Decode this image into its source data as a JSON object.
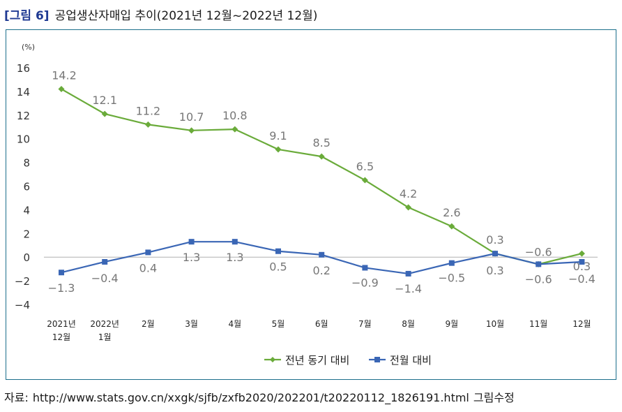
{
  "title": {
    "fig_label": "[그림 6]",
    "text": "공업생산자매입 추이(2021년 12월~2022년 12월)"
  },
  "source": {
    "label": "자료:",
    "url": "http://www.stats.gov.cn/xxgk/sjfb/zxfb2020/202201/t20220112_1826191.html",
    "note": "그림수정"
  },
  "chart_data": {
    "type": "line",
    "unit_label": "(%)",
    "ylim": [
      -4,
      16
    ],
    "yticks": [
      16,
      14,
      12,
      10,
      8,
      6,
      4,
      2,
      0,
      -2,
      -4
    ],
    "categories": [
      [
        "2021년",
        "12월"
      ],
      [
        "2022년",
        "1월"
      ],
      [
        "2월"
      ],
      [
        "3월"
      ],
      [
        "4월"
      ],
      [
        "5월"
      ],
      [
        "6월"
      ],
      [
        "7월"
      ],
      [
        "8월"
      ],
      [
        "9월"
      ],
      [
        "10월"
      ],
      [
        "11월"
      ],
      [
        "12월"
      ]
    ],
    "legend_position": "bottom",
    "grid": false,
    "series": [
      {
        "name": "전년 동기 대비",
        "color": "#6aab3a",
        "marker": "diamond",
        "values": [
          14.2,
          12.1,
          11.2,
          10.7,
          10.8,
          9.1,
          8.5,
          6.5,
          4.2,
          2.6,
          0.3,
          -0.6,
          0.3
        ],
        "labels": [
          "14.2",
          "12.1",
          "11.2",
          "10.7",
          "10.8",
          "9.1",
          "8.5",
          "6.5",
          "4.2",
          "2.6",
          "0.3",
          "−0.6",
          "0.3"
        ]
      },
      {
        "name": "전월 대비",
        "color": "#3a66b5",
        "marker": "square",
        "values": [
          -1.3,
          -0.4,
          0.4,
          1.3,
          1.3,
          0.5,
          0.2,
          -0.9,
          -1.4,
          -0.5,
          0.3,
          -0.6,
          -0.4
        ],
        "labels": [
          "−1.3",
          "−0.4",
          "0.4",
          "1.3",
          "1.3",
          "0.5",
          "0.2",
          "−0.9",
          "−1.4",
          "−0.5",
          "0.3",
          "−0.6",
          "−0.4"
        ]
      }
    ]
  }
}
